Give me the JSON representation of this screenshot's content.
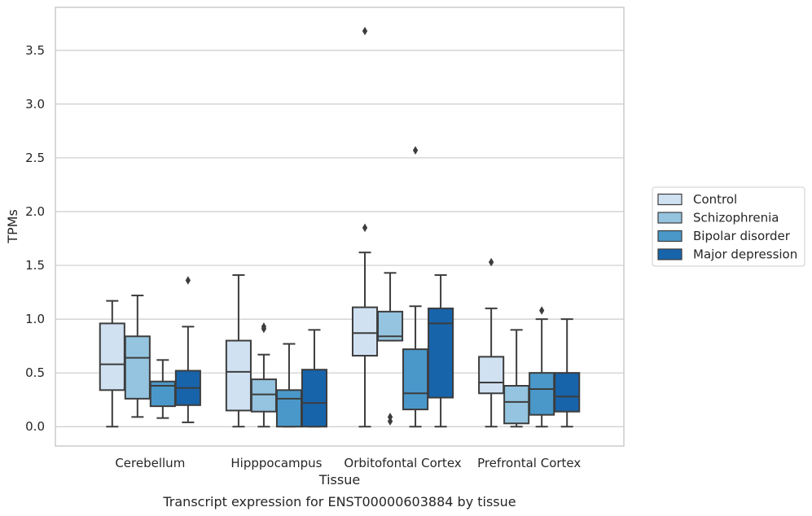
{
  "chart_data": {
    "type": "box",
    "title": "",
    "caption": "Transcript expression for ENST00000603884 by tissue",
    "xlabel": "Tissue",
    "ylabel": "TPMs",
    "ylim": [
      -0.18,
      3.9
    ],
    "yticks": [
      0.0,
      0.5,
      1.0,
      1.5,
      2.0,
      2.5,
      3.0,
      3.5
    ],
    "ytick_labels": [
      "0.0",
      "0.5",
      "1.0",
      "1.5",
      "2.0",
      "2.5",
      "3.0",
      "3.5"
    ],
    "grid": "horizontal",
    "legend_position": "right",
    "categories": [
      "Cerebellum",
      "Hipppocampus",
      "Orbitofontal Cortex",
      "Prefrontal Cortex"
    ],
    "series": [
      {
        "name": "Control",
        "color": "#d0e1f2",
        "boxes": [
          {
            "whislo": 0.0,
            "q1": 0.34,
            "med": 0.58,
            "q3": 0.96,
            "whishi": 1.17,
            "fliers": []
          },
          {
            "whislo": 0.0,
            "q1": 0.15,
            "med": 0.51,
            "q3": 0.8,
            "whishi": 1.41,
            "fliers": []
          },
          {
            "whislo": 0.0,
            "q1": 0.66,
            "med": 0.87,
            "q3": 1.11,
            "whishi": 1.62,
            "fliers": [
              1.85,
              3.68
            ]
          },
          {
            "whislo": 0.0,
            "q1": 0.31,
            "med": 0.41,
            "q3": 0.65,
            "whishi": 1.1,
            "fliers": [
              1.53
            ]
          }
        ]
      },
      {
        "name": "Schizophrenia",
        "color": "#94c4df",
        "boxes": [
          {
            "whislo": 0.09,
            "q1": 0.26,
            "med": 0.64,
            "q3": 0.84,
            "whishi": 1.22,
            "fliers": []
          },
          {
            "whislo": 0.0,
            "q1": 0.14,
            "med": 0.3,
            "q3": 0.44,
            "whishi": 0.67,
            "fliers": [
              0.91,
              0.93
            ]
          },
          {
            "whislo": 0.8,
            "q1": 0.8,
            "med": 0.84,
            "q3": 1.07,
            "whishi": 1.43,
            "fliers": [
              0.05,
              0.09
            ]
          },
          {
            "whislo": 0.0,
            "q1": 0.03,
            "med": 0.23,
            "q3": 0.38,
            "whishi": 0.9,
            "fliers": []
          }
        ]
      },
      {
        "name": "Bipolar disorder",
        "color": "#4a98c9",
        "boxes": [
          {
            "whislo": 0.08,
            "q1": 0.19,
            "med": 0.38,
            "q3": 0.42,
            "whishi": 0.62,
            "fliers": []
          },
          {
            "whislo": 0.0,
            "q1": 0.0,
            "med": 0.26,
            "q3": 0.34,
            "whishi": 0.77,
            "fliers": []
          },
          {
            "whislo": 0.0,
            "q1": 0.16,
            "med": 0.31,
            "q3": 0.72,
            "whishi": 1.12,
            "fliers": [
              2.57
            ]
          },
          {
            "whislo": 0.0,
            "q1": 0.11,
            "med": 0.35,
            "q3": 0.5,
            "whishi": 1.0,
            "fliers": [
              1.08
            ]
          }
        ]
      },
      {
        "name": "Major depression",
        "color": "#1764ab",
        "boxes": [
          {
            "whislo": 0.04,
            "q1": 0.2,
            "med": 0.36,
            "q3": 0.52,
            "whishi": 0.93,
            "fliers": [
              1.36
            ]
          },
          {
            "whislo": 0.0,
            "q1": 0.0,
            "med": 0.22,
            "q3": 0.53,
            "whishi": 0.9,
            "fliers": []
          },
          {
            "whislo": 0.0,
            "q1": 0.27,
            "med": 0.96,
            "q3": 1.1,
            "whishi": 1.41,
            "fliers": []
          },
          {
            "whislo": 0.0,
            "q1": 0.14,
            "med": 0.28,
            "q3": 0.5,
            "whishi": 1.0,
            "fliers": []
          }
        ]
      }
    ]
  }
}
